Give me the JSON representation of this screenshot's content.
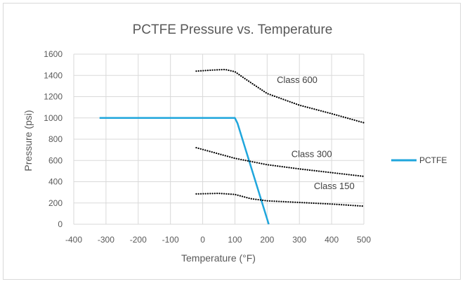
{
  "chart_data": {
    "type": "line",
    "title": "PCTFE Pressure vs. Temperature",
    "xlabel": "Temperature (°F)",
    "ylabel": "Pressure (psi)",
    "xlim": [
      -400,
      500
    ],
    "ylim": [
      0,
      1600
    ],
    "xticks": [
      -400,
      -300,
      -200,
      -100,
      0,
      100,
      200,
      300,
      400,
      500
    ],
    "yticks": [
      0,
      200,
      400,
      600,
      800,
      1000,
      1200,
      1400,
      1600
    ],
    "grid": true,
    "legend": "right",
    "series": [
      {
        "name": "PCTFE",
        "style": "solid",
        "color": "#1fa6dc",
        "in_legend": true,
        "points": [
          [
            -320,
            1000
          ],
          [
            100,
            1000
          ],
          [
            108,
            950
          ],
          [
            205,
            0
          ]
        ]
      },
      {
        "name": "Class 600",
        "style": "dotted",
        "color": "#000000",
        "in_legend": false,
        "points": [
          [
            -20,
            1440
          ],
          [
            30,
            1450
          ],
          [
            70,
            1455
          ],
          [
            100,
            1435
          ],
          [
            150,
            1330
          ],
          [
            200,
            1230
          ],
          [
            300,
            1120
          ],
          [
            400,
            1040
          ],
          [
            500,
            955
          ]
        ]
      },
      {
        "name": "Class 300",
        "style": "dotted",
        "color": "#000000",
        "in_legend": false,
        "points": [
          [
            -20,
            720
          ],
          [
            100,
            620
          ],
          [
            200,
            560
          ],
          [
            300,
            520
          ],
          [
            400,
            485
          ],
          [
            500,
            450
          ]
        ]
      },
      {
        "name": "Class 150",
        "style": "dotted",
        "color": "#000000",
        "in_legend": false,
        "points": [
          [
            -20,
            285
          ],
          [
            50,
            290
          ],
          [
            100,
            280
          ],
          [
            150,
            240
          ],
          [
            200,
            220
          ],
          [
            300,
            205
          ],
          [
            400,
            190
          ],
          [
            500,
            170
          ]
        ]
      }
    ],
    "annotations": [
      {
        "text": "Class 600",
        "x": 230,
        "y": 1330
      },
      {
        "text": "Class 300",
        "x": 275,
        "y": 630
      },
      {
        "text": "Class 150",
        "x": 345,
        "y": 330
      }
    ]
  }
}
